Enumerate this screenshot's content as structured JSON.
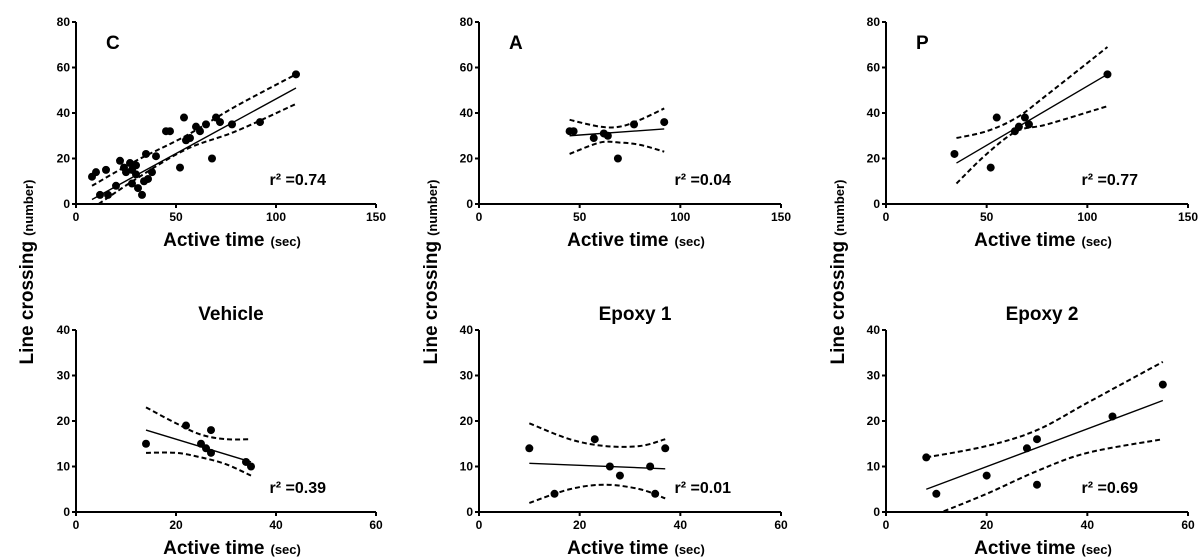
{
  "chart_data": [
    {
      "type": "scatter",
      "title": "C",
      "xlabel": "Active time",
      "xlabel_unit": "(sec)",
      "ylabel": "Line crossing",
      "ylabel_unit": "(number)",
      "xlim": [
        0,
        150
      ],
      "ylim": [
        0,
        80
      ],
      "xticks": [
        "0",
        "50",
        "100",
        "150"
      ],
      "yticks": [
        "0",
        "20",
        "40",
        "60",
        "80"
      ],
      "r2_label": "r² =0.74",
      "fit": {
        "x": [
          8,
          110
        ],
        "y": [
          2,
          51
        ]
      },
      "ci_upper": [
        [
          8,
          8
        ],
        [
          30,
          19
        ],
        [
          55,
          30
        ],
        [
          80,
          43
        ],
        [
          110,
          57
        ]
      ],
      "ci_lower": [
        [
          8,
          -2
        ],
        [
          30,
          11
        ],
        [
          55,
          24
        ],
        [
          80,
          32
        ],
        [
          110,
          44
        ]
      ],
      "points": [
        [
          8,
          12
        ],
        [
          10,
          14
        ],
        [
          12,
          4
        ],
        [
          15,
          15
        ],
        [
          16,
          4
        ],
        [
          20,
          8
        ],
        [
          22,
          19
        ],
        [
          24,
          16
        ],
        [
          25,
          14
        ],
        [
          27,
          18
        ],
        [
          28,
          9
        ],
        [
          28,
          15
        ],
        [
          30,
          17
        ],
        [
          31,
          7
        ],
        [
          30,
          13
        ],
        [
          33,
          4
        ],
        [
          34,
          10
        ],
        [
          35,
          22
        ],
        [
          36,
          11
        ],
        [
          38,
          14
        ],
        [
          40,
          21
        ],
        [
          45,
          32
        ],
        [
          47,
          32
        ],
        [
          52,
          16
        ],
        [
          54,
          38
        ],
        [
          55,
          28
        ],
        [
          57,
          29
        ],
        [
          60,
          34
        ],
        [
          62,
          32
        ],
        [
          65,
          35
        ],
        [
          68,
          20
        ],
        [
          70,
          38
        ],
        [
          72,
          36
        ],
        [
          78,
          35
        ],
        [
          92,
          36
        ],
        [
          110,
          57
        ]
      ]
    },
    {
      "type": "scatter",
      "title": "A",
      "xlabel": "Active time",
      "xlabel_unit": "(sec)",
      "ylabel": "",
      "ylabel_unit": "",
      "xlim": [
        0,
        150
      ],
      "ylim": [
        0,
        80
      ],
      "xticks": [
        "0",
        "50",
        "100",
        "150"
      ],
      "yticks": [
        "0",
        "20",
        "40",
        "60",
        "80"
      ],
      "r2_label": "r² =0.04",
      "fit": {
        "x": [
          45,
          92
        ],
        "y": [
          30,
          33
        ]
      },
      "ci_upper": [
        [
          45,
          37
        ],
        [
          60,
          34
        ],
        [
          70,
          34
        ],
        [
          80,
          37
        ],
        [
          92,
          42
        ]
      ],
      "ci_lower": [
        [
          45,
          22
        ],
        [
          60,
          27
        ],
        [
          70,
          27
        ],
        [
          80,
          26
        ],
        [
          92,
          23
        ]
      ],
      "points": [
        [
          45,
          32
        ],
        [
          47,
          32
        ],
        [
          57,
          29
        ],
        [
          62,
          31
        ],
        [
          64,
          30
        ],
        [
          69,
          20
        ],
        [
          77,
          35
        ],
        [
          92,
          36
        ]
      ]
    },
    {
      "type": "scatter",
      "title": "P",
      "xlabel": "Active time",
      "xlabel_unit": "(sec)",
      "ylabel": "",
      "ylabel_unit": "",
      "xlim": [
        0,
        150
      ],
      "ylim": [
        0,
        80
      ],
      "xticks": [
        "0",
        "50",
        "100",
        "150"
      ],
      "yticks": [
        "0",
        "20",
        "40",
        "60",
        "80"
      ],
      "r2_label": "r² =0.77",
      "fit": {
        "x": [
          35,
          110
        ],
        "y": [
          18,
          57
        ]
      },
      "ci_upper": [
        [
          35,
          29
        ],
        [
          50,
          32
        ],
        [
          65,
          38
        ],
        [
          80,
          48
        ],
        [
          110,
          69
        ]
      ],
      "ci_lower": [
        [
          35,
          9
        ],
        [
          50,
          22
        ],
        [
          65,
          32
        ],
        [
          80,
          35
        ],
        [
          110,
          43
        ]
      ],
      "points": [
        [
          34,
          22
        ],
        [
          52,
          16
        ],
        [
          55,
          38
        ],
        [
          64,
          32
        ],
        [
          66,
          34
        ],
        [
          69,
          38
        ],
        [
          71,
          35
        ],
        [
          110,
          57
        ]
      ]
    },
    {
      "type": "scatter",
      "title": "Vehicle",
      "xlabel": "Active time",
      "xlabel_unit": "(sec)",
      "ylabel": "",
      "ylabel_unit": "",
      "xlim": [
        0,
        60
      ],
      "ylim": [
        0,
        40
      ],
      "xticks": [
        "0",
        "20",
        "40",
        "60"
      ],
      "yticks": [
        "0",
        "10",
        "20",
        "30",
        "40"
      ],
      "r2_label": "r² =0.39",
      "fit": {
        "x": [
          14,
          35
        ],
        "y": [
          18,
          11
        ]
      },
      "ci_upper": [
        [
          14,
          23
        ],
        [
          20,
          19.5
        ],
        [
          25,
          17
        ],
        [
          30,
          16
        ],
        [
          35,
          16
        ]
      ],
      "ci_lower": [
        [
          14,
          13
        ],
        [
          20,
          13
        ],
        [
          25,
          12
        ],
        [
          30,
          10.5
        ],
        [
          35,
          8
        ]
      ],
      "points": [
        [
          14,
          15
        ],
        [
          22,
          19
        ],
        [
          25,
          15
        ],
        [
          26,
          14
        ],
        [
          27,
          13
        ],
        [
          27,
          18
        ],
        [
          34,
          11
        ],
        [
          35,
          10
        ]
      ]
    },
    {
      "type": "scatter",
      "title": "Epoxy 1",
      "xlabel": "Active time",
      "xlabel_unit": "(sec)",
      "ylabel": "",
      "ylabel_unit": "",
      "xlim": [
        0,
        60
      ],
      "ylim": [
        0,
        40
      ],
      "xticks": [
        "0",
        "20",
        "40",
        "60"
      ],
      "yticks": [
        "0",
        "10",
        "20",
        "30",
        "40"
      ],
      "r2_label": "r² =0.01",
      "fit": {
        "x": [
          10,
          37
        ],
        "y": [
          10.7,
          9.5
        ]
      },
      "ci_upper": [
        [
          10,
          19.5
        ],
        [
          18,
          16
        ],
        [
          25,
          14.5
        ],
        [
          32,
          14.5
        ],
        [
          37,
          16
        ]
      ],
      "ci_lower": [
        [
          10,
          2
        ],
        [
          18,
          5
        ],
        [
          25,
          6
        ],
        [
          32,
          5
        ],
        [
          37,
          3
        ]
      ],
      "points": [
        [
          10,
          14
        ],
        [
          15,
          4
        ],
        [
          23,
          16
        ],
        [
          26,
          10
        ],
        [
          28,
          8
        ],
        [
          34,
          10
        ],
        [
          35,
          4
        ],
        [
          37,
          14
        ]
      ]
    },
    {
      "type": "scatter",
      "title": "Epoxy 2",
      "xlabel": "Active time",
      "xlabel_unit": "(sec)",
      "ylabel": "",
      "ylabel_unit": "",
      "xlim": [
        0,
        60
      ],
      "ylim": [
        0,
        40
      ],
      "xticks": [
        "0",
        "20",
        "40",
        "60"
      ],
      "yticks": [
        "0",
        "10",
        "20",
        "30",
        "40"
      ],
      "r2_label": "r² =0.69",
      "fit": {
        "x": [
          8,
          55
        ],
        "y": [
          5,
          24.5
        ]
      },
      "ci_upper": [
        [
          8,
          12
        ],
        [
          20,
          14.5
        ],
        [
          30,
          18
        ],
        [
          40,
          24
        ],
        [
          55,
          33
        ]
      ],
      "ci_lower": [
        [
          10,
          -0.5
        ],
        [
          20,
          4
        ],
        [
          30,
          9
        ],
        [
          40,
          13
        ],
        [
          55,
          16
        ]
      ],
      "points": [
        [
          8,
          12
        ],
        [
          10,
          4
        ],
        [
          20,
          8
        ],
        [
          28,
          14
        ],
        [
          30,
          16
        ],
        [
          30,
          6
        ],
        [
          45,
          21
        ],
        [
          55,
          28
        ]
      ]
    }
  ],
  "shared_ylabel": {
    "text": "Line crossing",
    "unit": "(number)"
  }
}
